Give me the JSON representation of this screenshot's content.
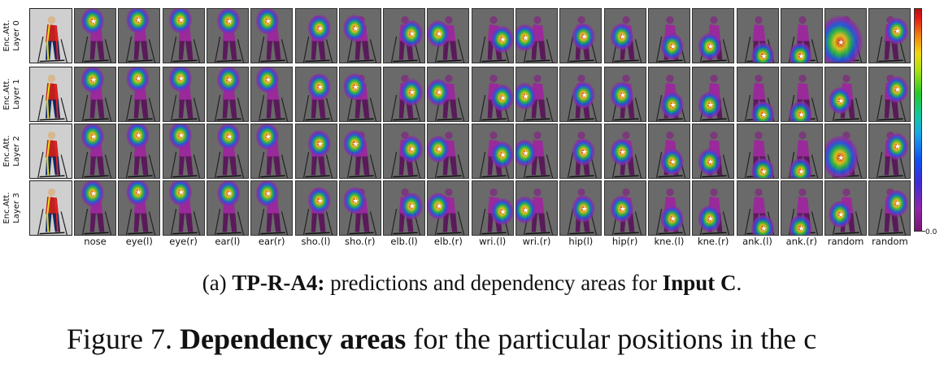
{
  "figure": {
    "row_labels": [
      {
        "line1": "Enc.Att.",
        "line2": "Layer 0"
      },
      {
        "line1": "Enc.Att.",
        "line2": "Layer 1"
      },
      {
        "line1": "Enc.Att.",
        "line2": "Layer 2"
      },
      {
        "line1": "Enc.Att.",
        "line2": "Layer 3"
      }
    ],
    "column_labels": [
      "nose",
      "eye(l)",
      "eye(r)",
      "ear(l)",
      "ear(r)",
      "sho.(l)",
      "sho.(r)",
      "elb.(l)",
      "elb.(r)",
      "wri.(l)",
      "wri.(r)",
      "hip(l)",
      "hip(r)",
      "kne.(l)",
      "kne.(r)",
      "ank.(l)",
      "ank.(r)",
      "random",
      "random"
    ],
    "colorbar": {
      "min_label": "0.0"
    },
    "colors": {
      "background": "#ffffff",
      "figure_bg": "#6a6a6a",
      "skier_suit": "#9a2a9a",
      "star": "#ffffff"
    }
  },
  "caption_a": {
    "prefix": "(a)",
    "model": "TP-R-A4:",
    "middle": "predictions and dependency areas for",
    "input": "Input C",
    "end": "."
  },
  "figure_caption": {
    "label": "Figure 7.",
    "bold": "Dependency areas",
    "rest": "for the particular positions in the c"
  }
}
